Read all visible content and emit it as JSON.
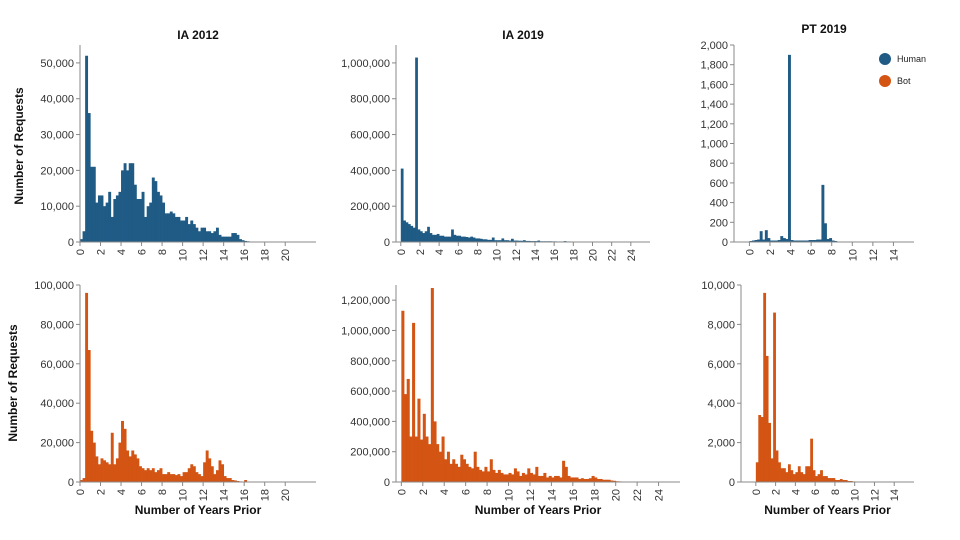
{
  "figure": {
    "colors": {
      "human": "#1f5b85",
      "bot": "#d35413"
    },
    "xlabel": "Number of Years Prior",
    "ylabel": "Number of Requests"
  },
  "legend": {
    "items": [
      {
        "label": "Human",
        "color": "#1f5b85"
      },
      {
        "label": "Bot",
        "color": "#d35413"
      }
    ]
  },
  "chart_data": [
    {
      "id": "ia2012-human",
      "type": "bar",
      "title": "IA 2012",
      "series": "Human",
      "xlabel": "",
      "ylabel": "Number of Requests",
      "xlim": [
        0,
        23
      ],
      "ylim": [
        0,
        55000
      ],
      "xticks": [
        0,
        2,
        4,
        6,
        8,
        10,
        12,
        14,
        16,
        18,
        20
      ],
      "yticks": [
        0,
        10000,
        20000,
        30000,
        40000,
        50000
      ],
      "ytick_labels": [
        "0",
        "10,000",
        "20,000",
        "30,000",
        "40,000",
        "50,000"
      ],
      "bin_width": 0.25,
      "values": [
        800,
        3000,
        52000,
        36000,
        21000,
        21000,
        11000,
        13000,
        13000,
        10000,
        11000,
        14000,
        7000,
        12000,
        13000,
        14000,
        20000,
        22000,
        20000,
        22000,
        22000,
        16000,
        12000,
        12000,
        14000,
        7000,
        10000,
        11000,
        18000,
        17000,
        14000,
        13000,
        11000,
        8000,
        8000,
        8500,
        8000,
        7000,
        7000,
        6000,
        6000,
        7000,
        5000,
        6000,
        5000,
        4000,
        3000,
        4000,
        4000,
        3000,
        3000,
        2500,
        3000,
        4000,
        2000,
        1500,
        1500,
        1500,
        1500,
        2500,
        2500,
        2000,
        800,
        500,
        300,
        200,
        100,
        50,
        30,
        20,
        20,
        20,
        20,
        10,
        10,
        10,
        10,
        10,
        10,
        10,
        10,
        10
      ]
    },
    {
      "id": "ia2019-human",
      "type": "bar",
      "title": "IA 2019",
      "series": "Human",
      "xlabel": "",
      "ylabel": "",
      "xlim": [
        -0.5,
        26
      ],
      "ylim": [
        0,
        1100000
      ],
      "xticks": [
        0,
        2,
        4,
        6,
        8,
        10,
        12,
        14,
        16,
        18,
        20,
        22,
        24
      ],
      "yticks": [
        0,
        200000,
        400000,
        600000,
        800000,
        1000000
      ],
      "ytick_labels": [
        "0",
        "200,000",
        "400,000",
        "600,000",
        "800,000",
        "1,000,000"
      ],
      "bin_width": 0.25,
      "values": [
        410000,
        120000,
        110000,
        100000,
        90000,
        80000,
        1030000,
        70000,
        60000,
        50000,
        60000,
        85000,
        50000,
        40000,
        40000,
        45000,
        35000,
        35000,
        30000,
        30000,
        30000,
        70000,
        40000,
        35000,
        35000,
        30000,
        30000,
        28000,
        25000,
        30000,
        25000,
        20000,
        20000,
        18000,
        15000,
        15000,
        12000,
        12000,
        25000,
        10000,
        10000,
        10000,
        20000,
        10000,
        10000,
        8000,
        18000,
        8000,
        8000,
        7000,
        7000,
        10000,
        6000,
        6000,
        5000,
        5000,
        5000,
        8000,
        4000,
        4000,
        4000,
        4000,
        4000,
        3500,
        3500,
        3000,
        3000,
        3000,
        5000,
        3000,
        3000,
        2500,
        2500,
        2500,
        2000,
        2000,
        2000,
        2000,
        2000,
        1500,
        1500,
        1500,
        1500,
        1500,
        1000,
        1000,
        1000,
        1000,
        1000,
        1000,
        800,
        800,
        800,
        800,
        600,
        600,
        600,
        500,
        400,
        300
      ]
    },
    {
      "id": "pt2019-human",
      "type": "bar",
      "title": "PT 2019",
      "series": "Human",
      "xlabel": "",
      "ylabel": "",
      "xlim": [
        -1.5,
        16
      ],
      "ylim": [
        0,
        2000
      ],
      "xticks": [
        0,
        2,
        4,
        6,
        8,
        10,
        12,
        14
      ],
      "yticks": [
        0,
        200,
        400,
        600,
        800,
        1000,
        1200,
        1400,
        1600,
        1800,
        2000
      ],
      "ytick_labels": [
        "0",
        "200",
        "400",
        "600",
        "800",
        "1,000",
        "1,200",
        "1,400",
        "1,600",
        "1,800",
        "2,000"
      ],
      "bin_width": 0.25,
      "values": [
        10,
        15,
        20,
        25,
        110,
        25,
        120,
        40,
        15,
        15,
        15,
        20,
        60,
        40,
        30,
        1900,
        20,
        15,
        15,
        15,
        15,
        15,
        15,
        20,
        20,
        20,
        25,
        25,
        580,
        190,
        30,
        40,
        15,
        10,
        5
      ]
    },
    {
      "id": "ia2012-bot",
      "type": "bar",
      "title": "",
      "series": "Bot",
      "xlabel": "Number of Years Prior",
      "ylabel": "Number of Requests",
      "xlim": [
        0,
        23
      ],
      "ylim": [
        0,
        100000
      ],
      "xticks": [
        0,
        2,
        4,
        6,
        8,
        10,
        12,
        14,
        16,
        18,
        20
      ],
      "yticks": [
        0,
        20000,
        40000,
        60000,
        80000,
        100000
      ],
      "ytick_labels": [
        "0",
        "20,000",
        "40,000",
        "60,000",
        "80,000",
        "100,000"
      ],
      "bin_width": 0.25,
      "values": [
        1000,
        2000,
        96000,
        67000,
        26000,
        20000,
        13000,
        9000,
        12000,
        11000,
        10000,
        9000,
        25000,
        9000,
        12000,
        20000,
        31000,
        27000,
        16000,
        13000,
        16000,
        14000,
        12000,
        8000,
        7000,
        6000,
        7000,
        6000,
        7000,
        5000,
        6000,
        7000,
        4000,
        4000,
        5000,
        4000,
        4000,
        3500,
        4000,
        3000,
        5000,
        5000,
        7000,
        9000,
        8000,
        5000,
        4000,
        3000,
        10000,
        16000,
        12000,
        8000,
        4000,
        6000,
        11000,
        9000,
        3000,
        2000,
        2000,
        1000,
        800,
        500,
        300,
        200,
        1000,
        200,
        100,
        50,
        20,
        20,
        20,
        10,
        10,
        10,
        10,
        10,
        10,
        10,
        10,
        10,
        10,
        10
      ]
    },
    {
      "id": "ia2019-bot",
      "type": "bar",
      "title": "",
      "series": "Bot",
      "xlabel": "Number of Years Prior",
      "ylabel": "",
      "xlim": [
        -0.5,
        26
      ],
      "ylim": [
        0,
        1300000
      ],
      "xticks": [
        0,
        2,
        4,
        6,
        8,
        10,
        12,
        14,
        16,
        18,
        20,
        22,
        24
      ],
      "yticks": [
        0,
        200000,
        400000,
        600000,
        800000,
        1000000,
        1200000
      ],
      "ytick_labels": [
        "0",
        "200,000",
        "400,000",
        "600,000",
        "800,000",
        "1,000,000",
        "1,200,000"
      ],
      "bin_width": 0.25,
      "values": [
        1130000,
        580000,
        680000,
        300000,
        1050000,
        300000,
        550000,
        280000,
        450000,
        300000,
        250000,
        1280000,
        400000,
        250000,
        200000,
        300000,
        150000,
        200000,
        120000,
        150000,
        120000,
        100000,
        180000,
        150000,
        120000,
        100000,
        90000,
        200000,
        100000,
        80000,
        70000,
        100000,
        70000,
        150000,
        80000,
        60000,
        80000,
        60000,
        50000,
        50000,
        60000,
        50000,
        90000,
        70000,
        40000,
        60000,
        50000,
        90000,
        60000,
        50000,
        100000,
        40000,
        40000,
        60000,
        30000,
        40000,
        30000,
        40000,
        40000,
        30000,
        140000,
        100000,
        40000,
        30000,
        30000,
        30000,
        20000,
        25000,
        20000,
        20000,
        25000,
        40000,
        30000,
        20000,
        20000,
        15000,
        15000,
        15000,
        10000,
        8000,
        5000,
        4000,
        3000,
        2000,
        2000,
        2000,
        2000,
        1500,
        1500,
        1500,
        1000,
        1000,
        1000,
        800,
        800,
        600,
        500,
        400,
        300,
        200
      ]
    },
    {
      "id": "pt2019-bot",
      "type": "bar",
      "title": "",
      "series": "Bot",
      "xlabel": "Number of Years Prior",
      "ylabel": "",
      "xlim": [
        -1.5,
        16
      ],
      "ylim": [
        0,
        10000
      ],
      "xticks": [
        0,
        2,
        4,
        6,
        8,
        10,
        12,
        14
      ],
      "yticks": [
        0,
        2000,
        4000,
        6000,
        8000,
        10000
      ],
      "ytick_labels": [
        "0",
        "2,000",
        "4,000",
        "6,000",
        "8,000",
        "10,000"
      ],
      "bin_width": 0.25,
      "values": [
        1000,
        3400,
        3300,
        9600,
        6400,
        3000,
        1200,
        8600,
        1600,
        1000,
        700,
        700,
        500,
        900,
        600,
        400,
        500,
        800,
        500,
        400,
        800,
        800,
        2200,
        600,
        300,
        400,
        600,
        300,
        300,
        200,
        200,
        200,
        100,
        100,
        150,
        100,
        100,
        50,
        50,
        30
      ]
    }
  ]
}
